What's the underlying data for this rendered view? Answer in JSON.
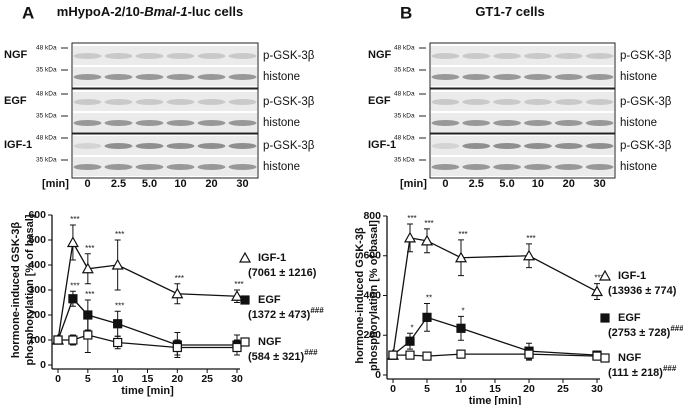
{
  "panels": [
    {
      "letter": "A",
      "title_parts": [
        {
          "text": "mHypoA-2/10-"
        },
        {
          "text": "Bmal-1",
          "italic": true
        },
        {
          "text": "-luc cells"
        }
      ],
      "groups": [
        {
          "label": "NGF",
          "kda": [
            "48 kDa",
            "35 kDa"
          ],
          "strips": [
            "p-GSK-3β",
            "histone"
          ]
        },
        {
          "label": "EGF",
          "kda": [
            "48 kDa",
            "35 kDa"
          ],
          "strips": [
            "p-GSK-3β",
            "histone"
          ]
        },
        {
          "label": "IGF-1",
          "kda": [
            "48 kDa",
            "35 kDa"
          ],
          "strips": [
            "p-GSK-3β",
            "histone"
          ]
        }
      ],
      "time_unit": "[min]",
      "times": [
        "0",
        "2.5",
        "5.0",
        "10",
        "20",
        "30"
      ]
    },
    {
      "letter": "B",
      "title_parts": [
        {
          "text": "GT1-7 cells"
        }
      ],
      "groups": [
        {
          "label": "NGF",
          "kda": [
            "48 kDa",
            "35 kDa"
          ],
          "strips": [
            "p-GSK-3β",
            "histone"
          ]
        },
        {
          "label": "EGF",
          "kda": [
            "48 kDa",
            "35 kDa"
          ],
          "strips": [
            "p-GSK-3β",
            "histone"
          ]
        },
        {
          "label": "IGF-1",
          "kda": [
            "48 kDa",
            "35 kDa"
          ],
          "strips": [
            "p-GSK-3β",
            "histone"
          ]
        }
      ],
      "time_unit": "[min]",
      "times": [
        "0",
        "2.5",
        "5.0",
        "10",
        "20",
        "30"
      ]
    }
  ],
  "chart_data": [
    {
      "type": "line",
      "ylabel": [
        "hormone-induced GSK-3β",
        "phosphorylation [% of basal]"
      ],
      "xlabel": "time [min]",
      "x": [
        0,
        2.5,
        5,
        10,
        20,
        30
      ],
      "xlim": [
        0,
        30
      ],
      "xticks": [
        0,
        5,
        10,
        15,
        20,
        25,
        30
      ],
      "ylim": [
        0,
        600
      ],
      "yticks": [
        0,
        100,
        200,
        300,
        400,
        500,
        600
      ],
      "series": [
        {
          "name": "IGF-1",
          "note": "(7061 ± 1216)",
          "marker": "triangle-open",
          "color": "#111111",
          "values": [
            100,
            490,
            385,
            400,
            285,
            275
          ],
          "errors": [
            0,
            70,
            60,
            100,
            40,
            25
          ],
          "stars": [
            null,
            "***",
            "***",
            "***",
            "***",
            "***"
          ]
        },
        {
          "name": "EGF",
          "note": "(1372 ± 473)",
          "sig": "###",
          "marker": "square-filled",
          "color": "#111111",
          "values": [
            100,
            265,
            200,
            165,
            80,
            80
          ],
          "errors": [
            0,
            30,
            60,
            50,
            50,
            40
          ],
          "stars": [
            null,
            "***",
            "***",
            "***",
            null,
            null
          ]
        },
        {
          "name": "NGF",
          "note": "(584 ± 321)",
          "sig": "###",
          "marker": "square-open",
          "color": "#111111",
          "values": [
            100,
            100,
            120,
            90,
            70,
            70
          ],
          "errors": [
            0,
            20,
            70,
            25,
            30,
            30
          ],
          "stars": [
            null,
            null,
            null,
            null,
            null,
            null
          ]
        }
      ]
    },
    {
      "type": "line",
      "ylabel": [
        "hormone-induced GSK-3β",
        "phosphorylation [% of basal]"
      ],
      "xlabel": "time [min]",
      "x": [
        0,
        2.5,
        5,
        10,
        20,
        30
      ],
      "xlim": [
        0,
        30
      ],
      "xticks": [
        0,
        5,
        10,
        15,
        20,
        25,
        30
      ],
      "ylim": [
        0,
        800
      ],
      "yticks": [
        0,
        200,
        400,
        600,
        800
      ],
      "series": [
        {
          "name": "IGF-1",
          "note": "(13936 ± 774)",
          "marker": "triangle-open",
          "color": "#111111",
          "values": [
            100,
            690,
            675,
            590,
            600,
            420
          ],
          "errors": [
            0,
            70,
            60,
            90,
            60,
            40
          ],
          "stars": [
            null,
            "***",
            "***",
            "***",
            "***",
            "***"
          ]
        },
        {
          "name": "EGF",
          "note": "(2753 ± 728)",
          "sig": "###",
          "marker": "square-filled",
          "color": "#111111",
          "values": [
            100,
            170,
            290,
            235,
            120,
            100
          ],
          "errors": [
            0,
            40,
            70,
            60,
            40,
            20
          ],
          "stars": [
            null,
            "*",
            "**",
            "*",
            null,
            null
          ]
        },
        {
          "name": "NGF",
          "note": "(111 ± 218)",
          "sig": "###",
          "marker": "square-open",
          "color": "#111111",
          "values": [
            100,
            100,
            95,
            105,
            105,
            95
          ],
          "errors": [
            0,
            15,
            15,
            10,
            30,
            15
          ],
          "stars": [
            null,
            null,
            null,
            null,
            null,
            null
          ]
        }
      ]
    }
  ]
}
